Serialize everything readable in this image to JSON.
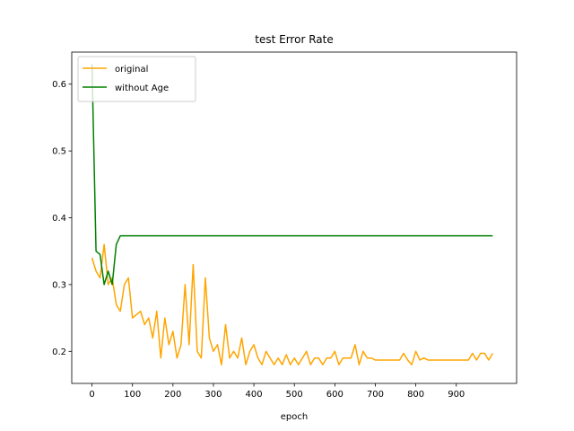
{
  "chart_data": {
    "type": "line",
    "title": "test Error Rate",
    "x_label": "epoch",
    "x": [
      0,
      10,
      20,
      30,
      40,
      50,
      60,
      70,
      80,
      90,
      100,
      110,
      120,
      130,
      140,
      150,
      160,
      170,
      180,
      190,
      200,
      210,
      220,
      230,
      240,
      250,
      260,
      270,
      280,
      290,
      300,
      310,
      320,
      330,
      340,
      350,
      360,
      370,
      380,
      390,
      400,
      410,
      420,
      430,
      440,
      450,
      460,
      470,
      480,
      490,
      500,
      510,
      520,
      530,
      540,
      550,
      560,
      570,
      580,
      590,
      600,
      610,
      620,
      630,
      640,
      650,
      660,
      670,
      680,
      690,
      700,
      710,
      720,
      730,
      740,
      750,
      760,
      770,
      780,
      790,
      800,
      810,
      820,
      830,
      840,
      850,
      860,
      870,
      880,
      890,
      900,
      910,
      920,
      930,
      940,
      950,
      960,
      970,
      980,
      990
    ],
    "series": [
      {
        "name": "original",
        "color": "#ffa500",
        "values": [
          0.34,
          0.32,
          0.31,
          0.36,
          0.3,
          0.31,
          0.27,
          0.26,
          0.3,
          0.31,
          0.25,
          0.255,
          0.26,
          0.24,
          0.25,
          0.22,
          0.26,
          0.19,
          0.25,
          0.21,
          0.23,
          0.19,
          0.21,
          0.3,
          0.21,
          0.33,
          0.2,
          0.19,
          0.31,
          0.22,
          0.2,
          0.21,
          0.18,
          0.24,
          0.19,
          0.2,
          0.19,
          0.22,
          0.18,
          0.2,
          0.21,
          0.19,
          0.18,
          0.2,
          0.19,
          0.18,
          0.19,
          0.18,
          0.195,
          0.18,
          0.19,
          0.18,
          0.19,
          0.2,
          0.18,
          0.19,
          0.19,
          0.18,
          0.19,
          0.19,
          0.2,
          0.18,
          0.19,
          0.19,
          0.19,
          0.21,
          0.18,
          0.2,
          0.19,
          0.19,
          0.187,
          0.187,
          0.187,
          0.187,
          0.187,
          0.187,
          0.187,
          0.197,
          0.187,
          0.18,
          0.2,
          0.187,
          0.19,
          0.187,
          0.187,
          0.187,
          0.187,
          0.187,
          0.187,
          0.187,
          0.187,
          0.187,
          0.187,
          0.187,
          0.197,
          0.187,
          0.197,
          0.197,
          0.187,
          0.197
        ]
      },
      {
        "name": "without Age",
        "color": "#008000",
        "values": [
          0.63,
          0.35,
          0.345,
          0.3,
          0.32,
          0.3,
          0.36,
          0.373,
          0.373,
          0.373,
          0.373,
          0.373,
          0.373,
          0.373,
          0.373,
          0.373,
          0.373,
          0.373,
          0.373,
          0.373,
          0.373,
          0.373,
          0.373,
          0.373,
          0.373,
          0.373,
          0.373,
          0.373,
          0.373,
          0.373,
          0.373,
          0.373,
          0.373,
          0.373,
          0.373,
          0.373,
          0.373,
          0.373,
          0.373,
          0.373,
          0.373,
          0.373,
          0.373,
          0.373,
          0.373,
          0.373,
          0.373,
          0.373,
          0.373,
          0.373,
          0.373,
          0.373,
          0.373,
          0.373,
          0.373,
          0.373,
          0.373,
          0.373,
          0.373,
          0.373,
          0.373,
          0.373,
          0.373,
          0.373,
          0.373,
          0.373,
          0.373,
          0.373,
          0.373,
          0.373,
          0.373,
          0.373,
          0.373,
          0.373,
          0.373,
          0.373,
          0.373,
          0.373,
          0.373,
          0.373,
          0.373,
          0.373,
          0.373,
          0.373,
          0.373,
          0.373,
          0.373,
          0.373,
          0.373,
          0.373,
          0.373,
          0.373,
          0.373,
          0.373,
          0.373,
          0.373,
          0.373,
          0.373,
          0.373,
          0.373
        ]
      }
    ],
    "xlim": [
      -50,
      1049
    ],
    "xticks": [
      0,
      100,
      200,
      300,
      400,
      500,
      600,
      700,
      800,
      900
    ],
    "ylim": [
      0.152,
      0.648
    ],
    "yticks": [
      0.2,
      0.3,
      0.4,
      0.5,
      0.6
    ],
    "legend": "upper left"
  }
}
